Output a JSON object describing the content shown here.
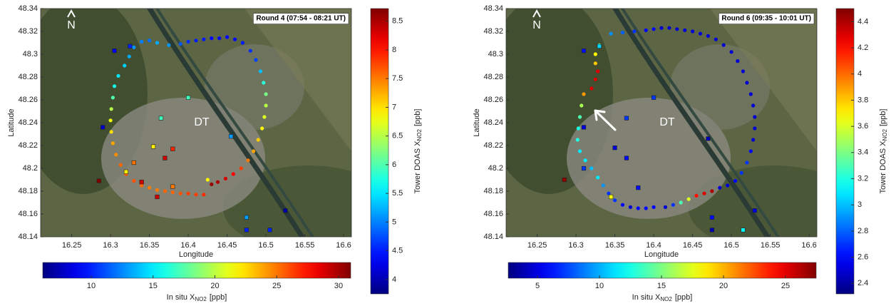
{
  "chart_data": [
    {
      "type": "scatter",
      "title": "Round 4 (07:54 - 08:21 UT)",
      "x_label": "Longitude",
      "y_label": "Latitude",
      "annotations": [
        "N",
        "DT"
      ],
      "xlim": [
        16.21,
        16.61
      ],
      "xticks": [
        16.25,
        16.3,
        16.35,
        16.4,
        16.45,
        16.5,
        16.55,
        16.6
      ],
      "ylim": [
        48.14,
        48.34
      ],
      "yticks": [
        48.14,
        48.16,
        48.18,
        48.2,
        48.22,
        48.24,
        48.26,
        48.28,
        48.3,
        48.32,
        48.34
      ],
      "colormap": "jet",
      "track": {
        "x": [
          16.42,
          16.41,
          16.4,
          16.39,
          16.38,
          16.37,
          16.36,
          16.35,
          16.34,
          16.33,
          16.32,
          16.313,
          16.307,
          16.303,
          16.301,
          16.3,
          16.301,
          16.303,
          16.305,
          16.31,
          16.318,
          16.324,
          16.33,
          16.34,
          16.35,
          16.36,
          16.375,
          16.39,
          16.4,
          16.41,
          16.42,
          16.43,
          16.44,
          16.45,
          16.46,
          16.47,
          16.48,
          16.487,
          16.493,
          16.497,
          16.5,
          16.5,
          16.498,
          16.495,
          16.49,
          16.484,
          16.477,
          16.468,
          16.458,
          16.448,
          16.438,
          16.43,
          16.425
        ],
        "y": [
          48.177,
          48.177,
          48.178,
          48.178,
          48.179,
          48.18,
          48.181,
          48.183,
          48.185,
          48.189,
          48.195,
          48.203,
          48.212,
          48.222,
          48.232,
          48.242,
          48.252,
          48.262,
          48.272,
          48.281,
          48.29,
          48.298,
          48.306,
          48.311,
          48.312,
          48.31,
          48.308,
          48.309,
          48.311,
          48.312,
          48.313,
          48.314,
          48.314,
          48.315,
          48.313,
          48.31,
          48.303,
          48.295,
          48.285,
          48.275,
          48.265,
          48.255,
          48.245,
          48.235,
          48.225,
          48.215,
          48.207,
          48.2,
          48.195,
          48.191,
          48.188,
          48.186,
          48.19
        ],
        "values": [
          7.9,
          7.8,
          7.8,
          7.7,
          7.6,
          7.6,
          7.5,
          7.5,
          7.6,
          7.7,
          7.7,
          7.6,
          7.4,
          7.3,
          7.0,
          6.8,
          6.5,
          6.0,
          5.7,
          5.5,
          5.4,
          5.2,
          5.1,
          5.0,
          4.9,
          5.2,
          5.1,
          4.8,
          4.6,
          4.5,
          4.5,
          4.4,
          4.4,
          4.4,
          4.4,
          4.5,
          4.6,
          4.7,
          5.3,
          5.8,
          6.2,
          6.5,
          6.7,
          6.9,
          7.1,
          7.3,
          7.5,
          7.8,
          8.1,
          8.3,
          8.5,
          8.6,
          6.9
        ]
      },
      "stations": {
        "x": [
          16.305,
          16.325,
          16.4,
          16.365,
          16.29,
          16.455,
          16.355,
          16.38,
          16.37,
          16.33,
          16.32,
          16.285,
          16.34,
          16.38,
          16.36,
          16.475,
          16.475,
          16.505,
          16.525
        ],
        "y": [
          48.303,
          48.307,
          48.262,
          48.244,
          48.236,
          48.228,
          48.219,
          48.217,
          48.209,
          48.205,
          48.197,
          48.189,
          48.188,
          48.184,
          48.175,
          48.157,
          48.146,
          48.146,
          48.163
        ],
        "values": [
          9,
          10,
          17,
          17,
          8,
          13,
          22,
          27,
          29,
          25,
          22,
          31,
          29,
          25,
          29,
          13,
          10,
          10,
          7
        ]
      },
      "colorbar": {
        "label": {
          "text": "Tower DOAS X",
          "sub": "NO2",
          "unit": "[ppb]"
        },
        "lim": [
          3.75,
          8.72
        ],
        "ticks": [
          4,
          4.5,
          5,
          5.5,
          6,
          6.5,
          7,
          7.5,
          8,
          8.5
        ]
      },
      "station_colorbar": {
        "label": {
          "text": "In situ X",
          "sub": "NO2",
          "unit": "[ppb]"
        },
        "lim": [
          6.08,
          30.98
        ],
        "ticks": [
          10,
          15,
          20,
          25,
          30
        ]
      }
    },
    {
      "type": "scatter",
      "title": "Round 6 (09:35 - 10:01 UT)",
      "x_label": "Longitude",
      "y_label": "Latitude",
      "annotations": [
        "N",
        "DT"
      ],
      "xlim": [
        16.21,
        16.61
      ],
      "xticks": [
        16.25,
        16.3,
        16.35,
        16.4,
        16.45,
        16.5,
        16.55,
        16.6
      ],
      "ylim": [
        48.14,
        48.34
      ],
      "yticks": [
        48.14,
        48.16,
        48.18,
        48.2,
        48.22,
        48.24,
        48.26,
        48.28,
        48.3,
        48.32,
        48.34
      ],
      "colormap": "jet",
      "track": {
        "x": [
          16.345,
          16.36,
          16.375,
          16.39,
          16.4,
          16.41,
          16.42,
          16.43,
          16.44,
          16.45,
          16.46,
          16.47,
          16.48,
          16.49,
          16.5,
          16.508,
          16.515,
          16.52,
          16.525,
          16.528,
          16.53,
          16.53,
          16.528,
          16.525,
          16.52,
          16.513,
          16.505,
          16.495,
          16.485,
          16.475,
          16.465,
          16.455,
          16.445,
          16.435,
          16.425,
          16.415,
          16.4,
          16.39,
          16.38,
          16.37,
          16.36,
          16.35,
          16.342,
          16.335,
          16.328,
          16.32,
          16.312,
          16.305,
          16.302,
          16.303,
          16.305,
          16.307,
          16.31,
          16.32,
          16.325,
          16.328,
          16.325,
          16.325,
          16.33
        ],
        "y": [
          48.318,
          48.319,
          48.32,
          48.321,
          48.322,
          48.323,
          48.323,
          48.322,
          48.321,
          48.32,
          48.318,
          48.316,
          48.313,
          48.308,
          48.302,
          48.294,
          48.285,
          48.275,
          48.265,
          48.255,
          48.245,
          48.235,
          48.225,
          48.215,
          48.205,
          48.196,
          48.189,
          48.185,
          48.183,
          48.18,
          48.178,
          48.176,
          48.173,
          48.17,
          48.168,
          48.166,
          48.166,
          48.165,
          48.165,
          48.166,
          48.168,
          48.172,
          48.178,
          48.185,
          48.192,
          48.2,
          48.207,
          48.215,
          48.225,
          48.235,
          48.245,
          48.255,
          48.265,
          48.27,
          48.278,
          48.285,
          48.292,
          48.3,
          48.308
        ],
        "values": [
          2.9,
          2.8,
          2.7,
          2.6,
          2.6,
          2.5,
          2.5,
          2.5,
          2.5,
          2.5,
          2.5,
          2.5,
          2.5,
          2.5,
          2.5,
          2.5,
          2.5,
          2.5,
          2.5,
          2.5,
          2.5,
          2.5,
          2.5,
          2.6,
          2.7,
          2.7,
          2.6,
          2.5,
          2.5,
          4.4,
          4.3,
          4.2,
          3.6,
          3.3,
          2.7,
          2.5,
          2.6,
          2.6,
          2.6,
          2.5,
          2.6,
          2.7,
          2.7,
          2.9,
          3.1,
          3.0,
          3.1,
          3.1,
          3.2,
          3.2,
          3.3,
          3.5,
          3.9,
          4.3,
          4.3,
          4.3,
          3.8,
          3.7,
          3.4
        ]
      },
      "stations": {
        "x": [
          16.31,
          16.33,
          16.4,
          16.365,
          16.31,
          16.47,
          16.35,
          16.365,
          16.31,
          16.285,
          16.345,
          16.38,
          16.475,
          16.475,
          16.515,
          16.53
        ],
        "y": [
          48.303,
          48.307,
          48.262,
          48.244,
          48.236,
          48.226,
          48.218,
          48.209,
          48.2,
          48.19,
          48.175,
          48.183,
          48.157,
          48.146,
          48.146,
          48.163
        ],
        "values": [
          6,
          11,
          7,
          7,
          5,
          4,
          5,
          6,
          7,
          27,
          18,
          6,
          6,
          4,
          12,
          5
        ]
      },
      "colorbar": {
        "label": {
          "text": "Tower DOAS X",
          "sub": "NO2",
          "unit": "[ppb]"
        },
        "lim": [
          2.32,
          4.5
        ],
        "ticks": [
          2.4,
          2.6,
          2.8,
          3,
          3.2,
          3.4,
          3.6,
          3.8,
          4,
          4.2,
          4.4
        ]
      },
      "station_colorbar": {
        "label": {
          "text": "In situ X",
          "sub": "NO2",
          "unit": "[ppb]"
        },
        "lim": [
          2.64,
          27.47
        ],
        "ticks": [
          5,
          10,
          15,
          20,
          25
        ]
      }
    }
  ]
}
